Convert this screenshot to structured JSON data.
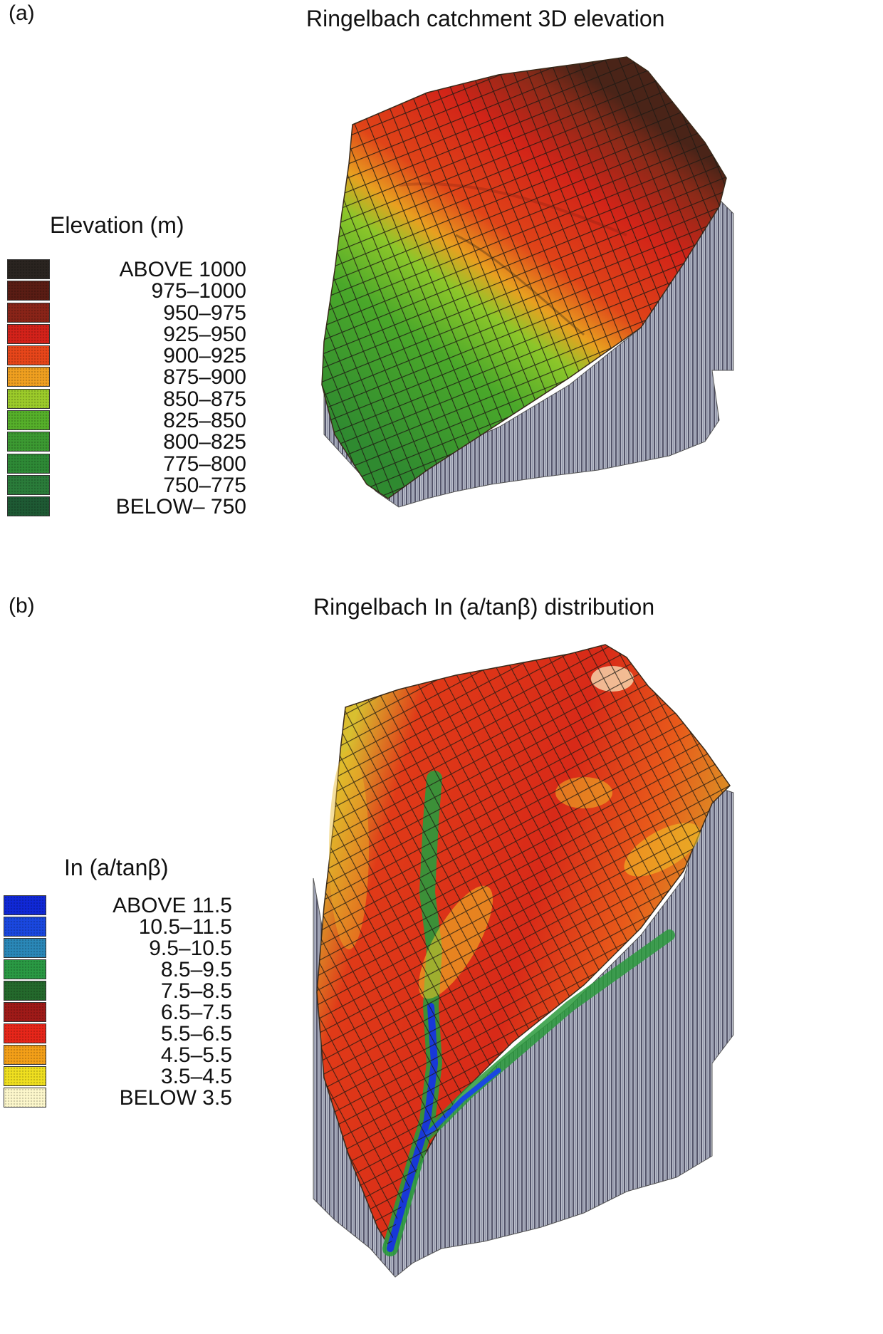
{
  "panel_a": {
    "letter": "(a)",
    "title": "Ringelbach catchment 3D elevation",
    "legend_title": "Elevation (m)",
    "legend": [
      {
        "label": "ABOVE    1000",
        "color": "#2a2420"
      },
      {
        "label": "975–1000",
        "color": "#5a1d14"
      },
      {
        "label": "950–975",
        "color": "#8a2418"
      },
      {
        "label": "925–950",
        "color": "#d4221a"
      },
      {
        "label": "900–925",
        "color": "#e8461a"
      },
      {
        "label": "875–900",
        "color": "#f0a020"
      },
      {
        "label": "850–875",
        "color": "#9ccc2a"
      },
      {
        "label": "825–850",
        "color": "#56b02a"
      },
      {
        "label": "800–825",
        "color": "#3c9a32"
      },
      {
        "label": "775–800",
        "color": "#2e8a36"
      },
      {
        "label": "750–775",
        "color": "#2a7c3a"
      },
      {
        "label": "BELOW– 750",
        "color": "#1e5a34"
      }
    ]
  },
  "panel_b": {
    "letter": "(b)",
    "title": "Ringelbach In (a/tanβ) distribution",
    "legend_title": "In (a/tanβ)",
    "legend": [
      {
        "label": "ABOVE  11.5",
        "color": "#1028d8"
      },
      {
        "label": "10.5–11.5",
        "color": "#1a48e0"
      },
      {
        "label": "9.5–10.5",
        "color": "#2a88b8"
      },
      {
        "label": "8.5–9.5",
        "color": "#2a9a44"
      },
      {
        "label": "7.5–8.5",
        "color": "#246a2c"
      },
      {
        "label": "6.5–7.5",
        "color": "#a01a18"
      },
      {
        "label": "5.5–6.5",
        "color": "#e8261a"
      },
      {
        "label": "4.5–5.5",
        "color": "#f4a018"
      },
      {
        "label": "3.5–4.5",
        "color": "#f0e020"
      },
      {
        "label": "BELOW     3.5",
        "color": "#fdf8cc"
      }
    ]
  }
}
